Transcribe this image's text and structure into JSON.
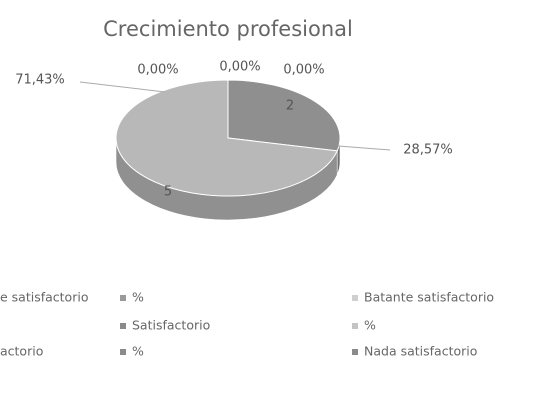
{
  "chart_data": {
    "type": "pie3d",
    "title": "Crecimiento profesional",
    "slices": [
      {
        "value": 2,
        "label": "2",
        "percent": 28.57,
        "percent_label": "28,57%",
        "color": "#8f8f8f"
      },
      {
        "value": 5,
        "label": "5",
        "percent": 71.43,
        "percent_label": "71,43%",
        "color": "#b8b8b8"
      },
      {
        "percent": 0,
        "percent_label": "0,00%",
        "color": "#d0d0d0"
      },
      {
        "percent": 0,
        "percent_label": "0,00%",
        "color": "#d8d8d8"
      },
      {
        "percent": 0,
        "percent_label": "0,00%",
        "color": "#e0e0e0"
      }
    ],
    "legend": [
      {
        "text": "e satisfactorio",
        "color": "#9a9a9a"
      },
      {
        "text": "%",
        "color": "#9a9a9a"
      },
      {
        "text": "Batante satisfactorio",
        "color": "#cfcfcf"
      },
      {
        "text": "Satisfactorio",
        "color": "#8a8a8a"
      },
      {
        "text": "%",
        "color": "#c4c4c4"
      },
      {
        "text": "actorio",
        "color": "#9a9a9a"
      },
      {
        "text": "%",
        "color": "#8a8a8a"
      },
      {
        "text": "Nada satisfactorio",
        "color": "#8a8a8a"
      }
    ]
  }
}
